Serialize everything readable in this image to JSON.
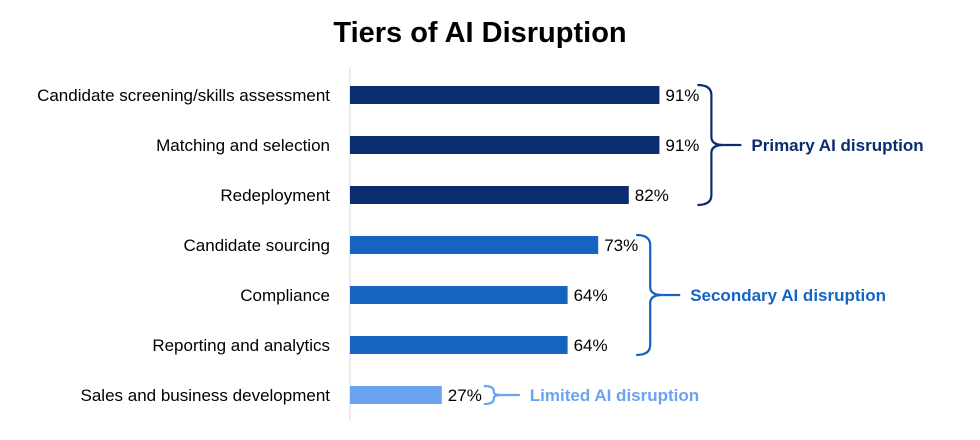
{
  "chart_data": {
    "type": "bar",
    "orientation": "horizontal",
    "title": "Tiers of AI Disruption",
    "xlim": [
      0,
      100
    ],
    "grid": false,
    "categories": [
      "Candidate screening/skills assessment",
      "Matching and selection",
      "Redeployment",
      "Candidate sourcing",
      "Compliance",
      "Reporting and analytics",
      "Sales and business development"
    ],
    "values": [
      91,
      91,
      82,
      73,
      64,
      64,
      27
    ],
    "value_labels": [
      "91%",
      "91%",
      "82%",
      "73%",
      "64%",
      "64%",
      "27%"
    ],
    "tiers": [
      {
        "label": "Primary AI disruption",
        "start": 0,
        "end": 2,
        "color": "#0b2c6e"
      },
      {
        "label": "Secondary AI disruption",
        "start": 3,
        "end": 5,
        "color": "#1565c0"
      },
      {
        "label": "Limited AI disruption",
        "start": 6,
        "end": 6,
        "color": "#6aa3f2"
      }
    ]
  }
}
